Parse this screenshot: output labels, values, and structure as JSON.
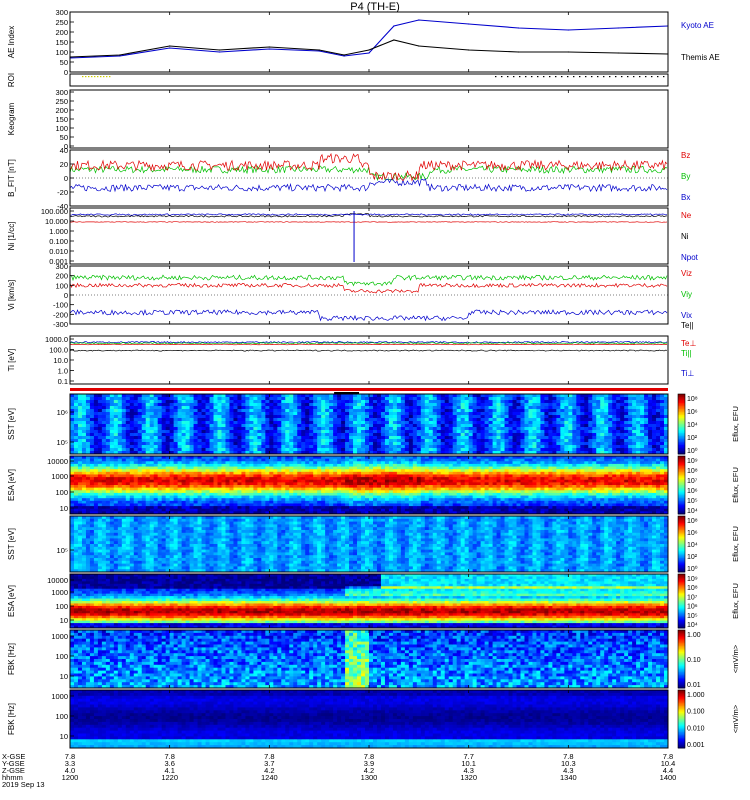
{
  "title": "P4 (TH-E)",
  "date_label": "2019 Sep 13",
  "footer_rows": [
    {
      "label": "X-GSE",
      "values": [
        "7.8",
        "7.8",
        "7.8",
        "7.8",
        "7.7",
        "7.8",
        "7.8"
      ]
    },
    {
      "label": "Y-GSE",
      "values": [
        "3.3",
        "3.6",
        "3.7",
        "3.9",
        "10.1",
        "10.3",
        "10.4"
      ]
    },
    {
      "label": "Z-GSE",
      "values": [
        "4.0",
        "4.1",
        "4.2",
        "4.2",
        "4.3",
        "4.3",
        "4.4"
      ]
    },
    {
      "label": "hhmm",
      "values": [
        "1200",
        "1220",
        "1240",
        "1300",
        "1320",
        "1340",
        "1400"
      ]
    }
  ],
  "chart_data": [
    {
      "type": "line",
      "panel_label": "AE Index",
      "ylim": [
        0,
        300
      ],
      "yticks": [
        "300",
        "250",
        "200",
        "150",
        "100",
        "50",
        "0"
      ],
      "x_hhmm": [
        "1200",
        "1210",
        "1220",
        "1230",
        "1240",
        "1250",
        "1255",
        "1300",
        "1305",
        "1310",
        "1320",
        "1330",
        "1340",
        "1350",
        "1400"
      ],
      "series": [
        {
          "name": "Kyoto AE",
          "color": "#0000cc",
          "values": [
            70,
            80,
            120,
            100,
            115,
            105,
            80,
            95,
            230,
            260,
            240,
            220,
            210,
            220,
            230
          ]
        },
        {
          "name": "Themis AE",
          "color": "#000000",
          "values": [
            75,
            85,
            130,
            110,
            125,
            110,
            85,
            110,
            160,
            130,
            110,
            100,
            100,
            95,
            90
          ]
        }
      ]
    },
    {
      "type": "heatmap",
      "panel_label": "ROI"
    },
    {
      "type": "heatmap",
      "panel_label": "Keogram",
      "yticks": [
        "300",
        "250",
        "200",
        "150",
        "100",
        "50",
        "0"
      ]
    },
    {
      "type": "line",
      "panel_label": "B_FIT [nT]",
      "ylim": [
        -40,
        40
      ],
      "yticks": [
        "40",
        "20",
        "0",
        "-20",
        "-40"
      ],
      "series": [
        {
          "name": "Bz",
          "color": "#e00000"
        },
        {
          "name": "By",
          "color": "#00c000"
        },
        {
          "name": "Bx",
          "color": "#0000cc"
        }
      ]
    },
    {
      "type": "line",
      "panel_label": "Ni [1/cc]",
      "yscale": "log",
      "yticks": [
        "100.000",
        "10.000",
        "1.000",
        "0.100",
        "0.010",
        "0.001"
      ],
      "series": [
        {
          "name": "Ne",
          "color": "#e00000"
        },
        {
          "name": "Ni",
          "color": "#000000"
        },
        {
          "name": "Npot",
          "color": "#0000cc"
        }
      ]
    },
    {
      "type": "line",
      "panel_label": "Vi [km/s]",
      "ylim": [
        -300,
        300
      ],
      "yticks": [
        "300",
        "200",
        "100",
        "0",
        "-100",
        "-200",
        "-300"
      ],
      "series": [
        {
          "name": "Viz",
          "color": "#e00000"
        },
        {
          "name": "Viy",
          "color": "#00c000"
        },
        {
          "name": "Vix",
          "color": "#0000cc"
        }
      ]
    },
    {
      "type": "line",
      "panel_label": "Ti [eV]",
      "yscale": "log",
      "yticks": [
        "1000.0",
        "100.0",
        "10.0",
        "1.0",
        "0.1"
      ],
      "series": [
        {
          "name": "Te||",
          "color": "#000000"
        },
        {
          "name": "Te⊥",
          "color": "#e00000"
        },
        {
          "name": "Ti||",
          "color": "#00c000"
        },
        {
          "name": "Ti⊥",
          "color": "#0000cc"
        }
      ]
    },
    {
      "type": "heatmap",
      "panel_label": "SST [eV]",
      "yticks": [
        "10⁶",
        "10⁵"
      ],
      "colorbar_label": "Eflux, EFU",
      "colorbar_ticks": [
        "10⁸",
        "10⁶",
        "10⁴",
        "10²",
        "10⁰"
      ]
    },
    {
      "type": "heatmap",
      "panel_label": "ESA [eV]",
      "yticks": [
        "10000",
        "1000",
        "100",
        "10"
      ],
      "colorbar_label": "Eflux, EFU",
      "colorbar_ticks": [
        "10⁹",
        "10⁸",
        "10⁷",
        "10⁶",
        "10⁵",
        "10⁴"
      ]
    },
    {
      "type": "heatmap",
      "panel_label": "SST [eV]",
      "yticks": [
        "10⁵"
      ],
      "colorbar_label": "Eflux, EFU",
      "colorbar_ticks": [
        "10⁸",
        "10⁶",
        "10⁴",
        "10²",
        "10⁰"
      ]
    },
    {
      "type": "heatmap",
      "panel_label": "ESA [eV]",
      "yticks": [
        "10000",
        "1000",
        "100",
        "10"
      ],
      "colorbar_label": "Eflux, EFU",
      "colorbar_ticks": [
        "10⁹",
        "10⁸",
        "10⁷",
        "10⁶",
        "10⁵",
        "10⁴"
      ]
    },
    {
      "type": "heatmap",
      "panel_label": "FBK [Hz]",
      "yticks": [
        "1000",
        "100",
        "10"
      ],
      "colorbar_label": "<mV/m>",
      "colorbar_ticks": [
        "1.00",
        "0.10",
        "0.01"
      ]
    },
    {
      "type": "heatmap",
      "panel_label": "FBK [Hz]",
      "yticks": [
        "1000",
        "100",
        "10"
      ],
      "colorbar_label": "<mV/m>",
      "colorbar_ticks": [
        "1.000",
        "0.100",
        "0.010",
        "0.001"
      ]
    }
  ]
}
